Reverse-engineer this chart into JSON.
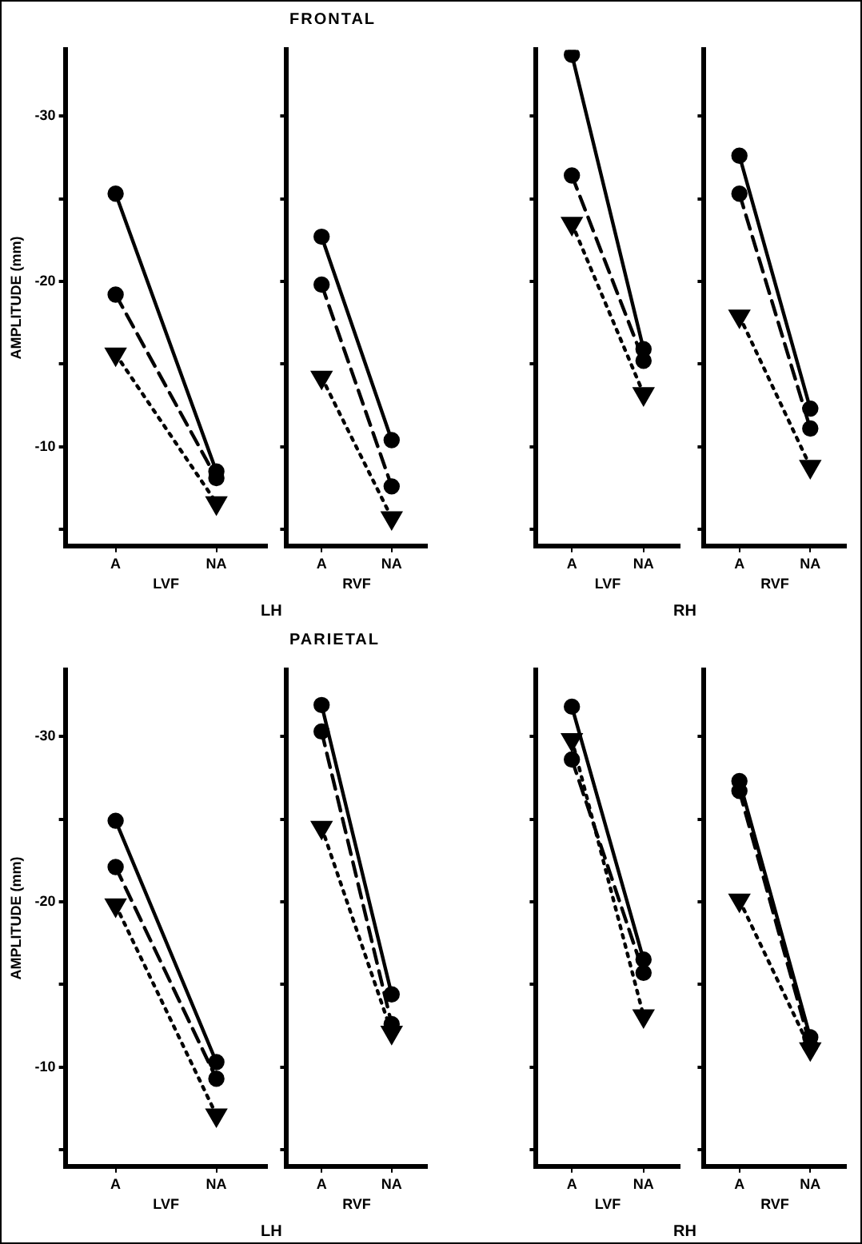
{
  "chart_data": [
    {
      "type": "line",
      "ylabel": "AMPLITUDE (mm)",
      "xlabel": "LVF",
      "categories": [
        "A",
        "NA"
      ],
      "ylim": [
        -4,
        -34
      ],
      "yticks": [
        {
          "value": -5,
          "label": null
        },
        -10,
        {
          "value": -15,
          "label": null
        },
        -20,
        {
          "value": -25,
          "label": null
        },
        -30
      ],
      "annotations": [
        "LH"
      ],
      "series": [
        {
          "color": "#000000",
          "line_style": "solid",
          "marker": "circle",
          "values": [
            -25.3,
            -8.5
          ]
        },
        {
          "color": "#000000",
          "line_style": "dashed",
          "marker": "circle",
          "values": [
            -19.2,
            -8.1
          ]
        },
        {
          "color": "#000000",
          "line_style": "dotted",
          "marker": "triangle",
          "values": [
            -15.6,
            -6.6
          ]
        }
      ]
    },
    {
      "type": "line",
      "title": "FRONTAL",
      "xlabel": "RVF",
      "categories": [
        "A",
        "NA"
      ],
      "ylim": [
        -4,
        -34
      ],
      "yticks": [
        {
          "value": -5,
          "label": null
        },
        -10,
        {
          "value": -15,
          "label": null
        },
        -20,
        {
          "value": -25,
          "label": null
        },
        -30
      ],
      "tick_labels": "x",
      "series": [
        {
          "color": "#000000",
          "line_style": "solid",
          "marker": "circle",
          "values": [
            -22.7,
            -10.4
          ]
        },
        {
          "color": "#000000",
          "line_style": "dashed",
          "marker": "circle",
          "values": [
            -19.8,
            -7.6
          ]
        },
        {
          "color": "#000000",
          "line_style": "dotted",
          "marker": "triangle",
          "values": [
            -14.2,
            -5.7
          ]
        }
      ]
    },
    {
      "type": "line",
      "xlabel": "LVF",
      "categories": [
        "A",
        "NA"
      ],
      "ylim": [
        -4,
        -34
      ],
      "yticks": [
        {
          "value": -5,
          "label": null
        },
        -10,
        {
          "value": -15,
          "label": null
        },
        -20,
        {
          "value": -25,
          "label": null
        },
        -30
      ],
      "tick_labels": "x",
      "annotations": [
        "RH"
      ],
      "series": [
        {
          "color": "#000000",
          "line_style": "solid",
          "marker": "circle",
          "values": [
            -33.7,
            -15.9
          ]
        },
        {
          "color": "#000000",
          "line_style": "dashed",
          "marker": "circle",
          "values": [
            -26.4,
            -15.2
          ]
        },
        {
          "color": "#000000",
          "line_style": "dotted",
          "marker": "triangle",
          "values": [
            -23.5,
            -13.2
          ]
        }
      ]
    },
    {
      "type": "line",
      "xlabel": "RVF",
      "categories": [
        "A",
        "NA"
      ],
      "ylim": [
        -4,
        -34
      ],
      "yticks": [
        {
          "value": -5,
          "label": null
        },
        -10,
        {
          "value": -15,
          "label": null
        },
        -20,
        {
          "value": -25,
          "label": null
        },
        -30
      ],
      "tick_labels": "x",
      "series": [
        {
          "color": "#000000",
          "line_style": "solid",
          "marker": "circle",
          "values": [
            -27.6,
            -12.3
          ]
        },
        {
          "color": "#000000",
          "line_style": "dashed",
          "marker": "circle",
          "values": [
            -25.3,
            -11.1
          ]
        },
        {
          "color": "#000000",
          "line_style": "dotted",
          "marker": "triangle",
          "values": [
            -17.9,
            -8.8
          ]
        }
      ]
    },
    {
      "type": "line",
      "ylabel": "AMPLITUDE (mm)",
      "xlabel": "LVF",
      "categories": [
        "A",
        "NA"
      ],
      "ylim": [
        -4,
        -34
      ],
      "yticks": [
        {
          "value": -5,
          "label": null
        },
        -10,
        {
          "value": -15,
          "label": null
        },
        -20,
        {
          "value": -25,
          "label": null
        },
        -30
      ],
      "annotations": [
        "LH"
      ],
      "series": [
        {
          "color": "#000000",
          "line_style": "solid",
          "marker": "circle",
          "values": [
            -24.9,
            -10.3
          ]
        },
        {
          "color": "#000000",
          "line_style": "dashed",
          "marker": "circle",
          "values": [
            -22.1,
            -9.3
          ]
        },
        {
          "color": "#000000",
          "line_style": "dotted",
          "marker": "triangle",
          "values": [
            -19.8,
            -7.1
          ]
        }
      ]
    },
    {
      "type": "line",
      "title": "PARIETAL",
      "xlabel": "RVF",
      "categories": [
        "A",
        "NA"
      ],
      "ylim": [
        -4,
        -34
      ],
      "yticks": [
        {
          "value": -5,
          "label": null
        },
        -10,
        {
          "value": -15,
          "label": null
        },
        -20,
        {
          "value": -25,
          "label": null
        },
        -30
      ],
      "tick_labels": "x",
      "series": [
        {
          "color": "#000000",
          "line_style": "solid",
          "marker": "circle",
          "values": [
            -31.9,
            -14.4
          ]
        },
        {
          "color": "#000000",
          "line_style": "dashed",
          "marker": "circle",
          "values": [
            -30.3,
            -12.6
          ]
        },
        {
          "color": "#000000",
          "line_style": "dotted",
          "marker": "triangle",
          "values": [
            -24.5,
            -12.1
          ]
        }
      ]
    },
    {
      "type": "line",
      "xlabel": "LVF",
      "categories": [
        "A",
        "NA"
      ],
      "ylim": [
        -4,
        -34
      ],
      "yticks": [
        {
          "value": -5,
          "label": null
        },
        -10,
        {
          "value": -15,
          "label": null
        },
        -20,
        {
          "value": -25,
          "label": null
        },
        -30
      ],
      "tick_labels": "x",
      "annotations": [
        "RH"
      ],
      "series": [
        {
          "color": "#000000",
          "line_style": "solid",
          "marker": "circle",
          "values": [
            -31.8,
            -16.5
          ]
        },
        {
          "color": "#000000",
          "line_style": "dashed",
          "marker": "circle",
          "values": [
            -28.6,
            -15.7
          ]
        },
        {
          "color": "#000000",
          "line_style": "dotted",
          "marker": "triangle",
          "values": [
            -29.8,
            -13.1
          ]
        }
      ]
    },
    {
      "type": "line",
      "xlabel": "RVF",
      "categories": [
        "A",
        "NA"
      ],
      "ylim": [
        -4,
        -34
      ],
      "yticks": [
        {
          "value": -5,
          "label": null
        },
        -10,
        {
          "value": -15,
          "label": null
        },
        -20,
        {
          "value": -25,
          "label": null
        },
        -30
      ],
      "tick_labels": "x",
      "series": [
        {
          "color": "#000000",
          "line_style": "solid",
          "marker": "circle",
          "values": [
            -27.3,
            -11.8
          ]
        },
        {
          "color": "#000000",
          "line_style": "dashed",
          "marker": "circle",
          "values": [
            -26.7,
            -11.3
          ]
        },
        {
          "color": "#000000",
          "line_style": "dotted",
          "marker": "triangle",
          "values": [
            -20.1,
            -11.1
          ]
        }
      ]
    }
  ]
}
